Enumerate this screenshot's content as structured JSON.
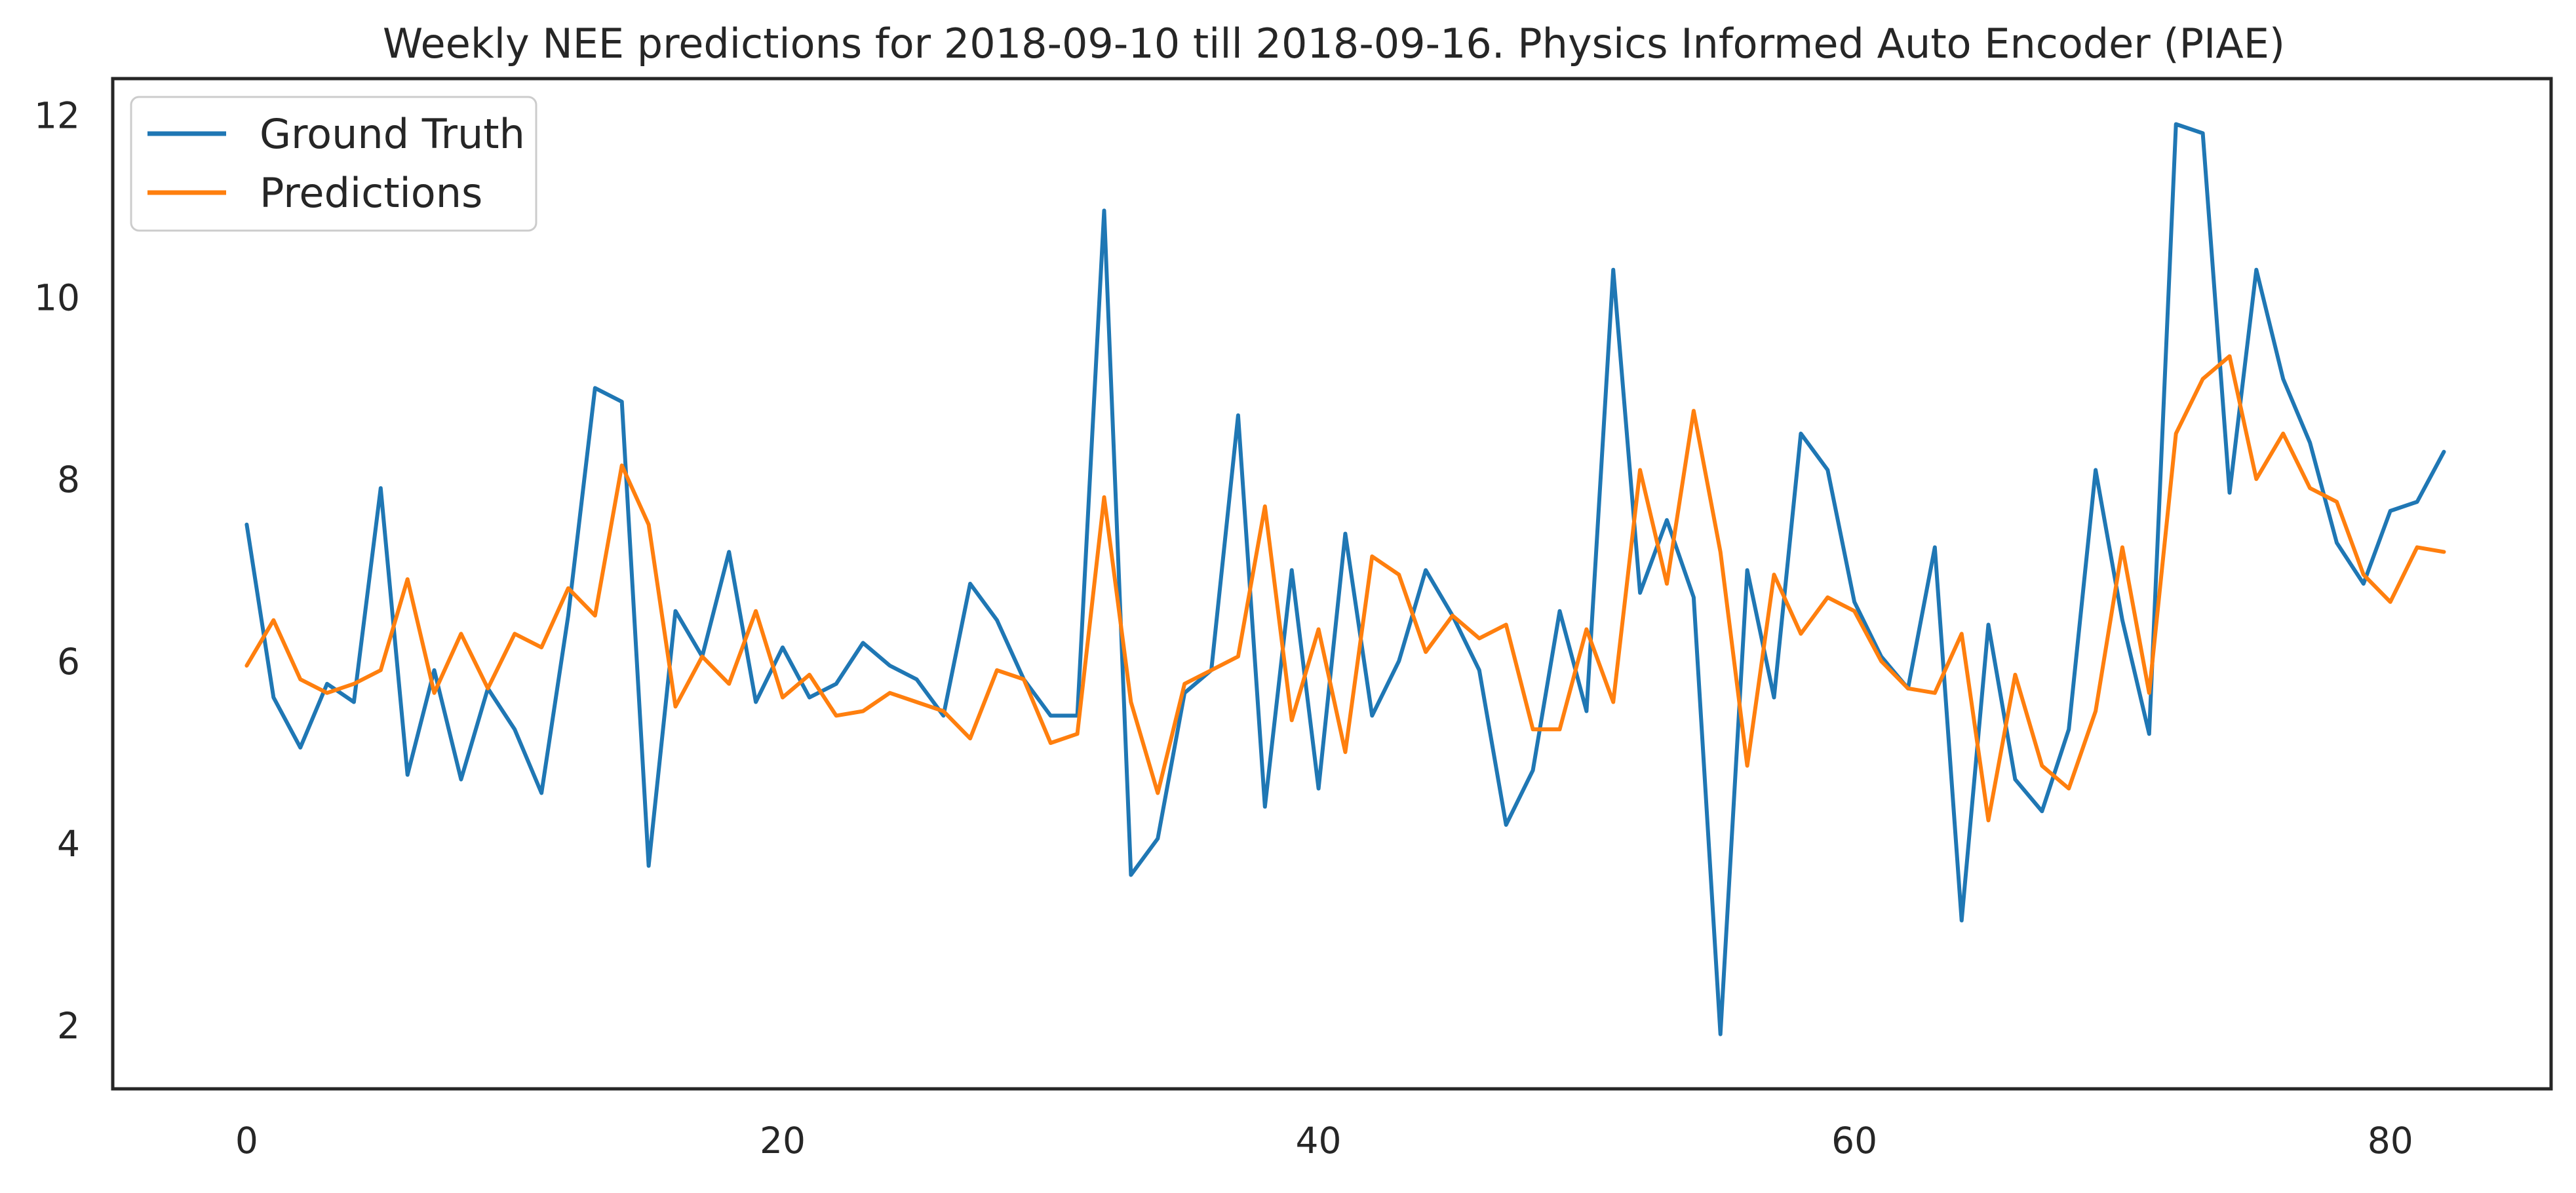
{
  "chart_data": {
    "type": "line",
    "title": "Weekly NEE predictions for 2018-09-10 till 2018-09-16. Physics Informed Auto Encoder (PIAE)",
    "xlabel": "",
    "ylabel": "",
    "xlim": [
      -5,
      86
    ],
    "ylim": [
      1.3,
      12.4
    ],
    "xticks": [
      0,
      20,
      40,
      60,
      80
    ],
    "yticks": [
      2,
      4,
      6,
      8,
      10,
      12
    ],
    "grid": false,
    "legend_position": "top-left",
    "x": [
      0,
      1,
      2,
      3,
      4,
      5,
      6,
      7,
      8,
      9,
      10,
      11,
      12,
      13,
      14,
      15,
      16,
      17,
      18,
      19,
      20,
      21,
      22,
      23,
      24,
      25,
      26,
      27,
      28,
      29,
      30,
      31,
      32,
      33,
      34,
      35,
      36,
      37,
      38,
      39,
      40,
      41,
      42,
      43,
      44,
      45,
      46,
      47,
      48,
      49,
      50,
      51,
      52,
      53,
      54,
      55,
      56,
      57,
      58,
      59,
      60,
      61,
      62,
      63,
      64,
      65,
      66,
      67,
      68,
      69,
      70,
      71,
      72,
      73,
      74,
      75,
      76,
      77,
      78,
      79,
      80,
      81,
      82
    ],
    "series": [
      {
        "name": "Ground Truth",
        "color": "#1f77b4",
        "values": [
          7.5,
          5.6,
          5.05,
          5.75,
          5.55,
          7.9,
          4.75,
          5.9,
          4.7,
          5.7,
          5.25,
          4.55,
          6.5,
          9.0,
          8.85,
          3.75,
          6.55,
          6.05,
          7.2,
          5.55,
          6.15,
          5.6,
          5.75,
          6.2,
          5.95,
          5.8,
          5.4,
          6.85,
          6.45,
          5.8,
          5.4,
          5.4,
          10.95,
          3.65,
          4.05,
          5.65,
          5.9,
          8.7,
          4.4,
          7.0,
          4.6,
          7.4,
          5.4,
          6.0,
          7.0,
          6.5,
          5.9,
          4.2,
          4.8,
          6.55,
          5.45,
          10.3,
          6.75,
          7.55,
          6.7,
          1.9,
          7.0,
          5.6,
          8.5,
          8.1,
          6.65,
          6.05,
          5.7,
          7.25,
          3.15,
          6.4,
          4.7,
          4.35,
          5.25,
          8.1,
          6.45,
          5.2,
          11.9,
          11.8,
          7.85,
          10.3,
          9.1,
          8.4,
          7.3,
          6.85,
          7.65,
          7.75,
          8.3
        ]
      },
      {
        "name": "Predictions",
        "color": "#ff7f0e",
        "values": [
          5.95,
          6.45,
          5.8,
          5.65,
          5.75,
          5.9,
          6.9,
          5.65,
          6.3,
          5.7,
          6.3,
          6.15,
          6.8,
          6.5,
          8.15,
          7.5,
          5.5,
          6.05,
          5.75,
          6.55,
          5.6,
          5.85,
          5.4,
          5.45,
          5.65,
          5.55,
          5.45,
          5.15,
          5.9,
          5.8,
          5.1,
          5.2,
          7.8,
          5.55,
          4.55,
          5.75,
          5.9,
          6.05,
          7.7,
          5.35,
          6.35,
          5.0,
          7.15,
          6.95,
          6.1,
          6.5,
          6.25,
          6.4,
          5.25,
          5.25,
          6.35,
          5.55,
          8.1,
          6.85,
          8.75,
          7.2,
          4.85,
          6.95,
          6.3,
          6.7,
          6.55,
          6.0,
          5.7,
          5.65,
          6.3,
          4.25,
          5.85,
          4.85,
          4.6,
          5.45,
          7.25,
          5.65,
          8.5,
          9.1,
          9.35,
          8.0,
          8.5,
          7.9,
          7.75,
          6.95,
          6.65,
          7.25,
          7.2
        ]
      }
    ]
  }
}
